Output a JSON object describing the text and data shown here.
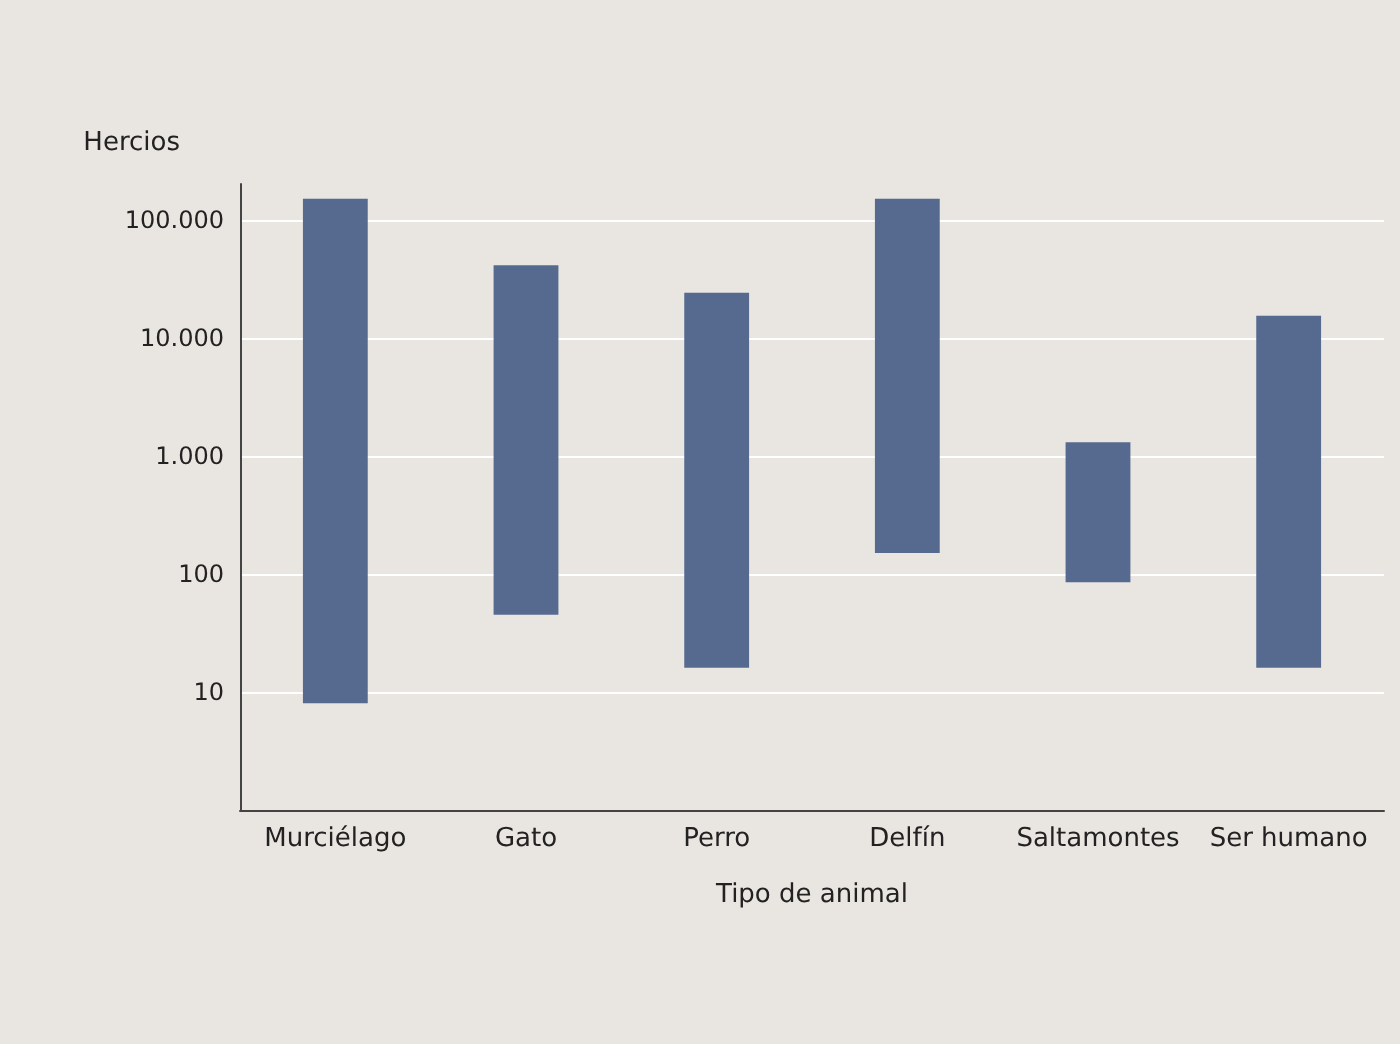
{
  "chart_data": {
    "type": "bar",
    "xlabel": "Tipo de animal",
    "ylabel": "Hercios",
    "categories": [
      "Murciélago",
      "Gato",
      "Perro",
      "Delfín",
      "Saltamontes",
      "Ser humano"
    ],
    "base": [
      8,
      45,
      16,
      150,
      85,
      16
    ],
    "values": [
      149992,
      40955,
      23984,
      149850,
      1215,
      15284
    ],
    "color": "#566a8f",
    "log": true,
    "ylim": [
      1,
      200000
    ],
    "yticks": [
      {
        "value": 10,
        "label": "10"
      },
      {
        "value": 100,
        "label": "100"
      },
      {
        "value": 1000,
        "label": "1.000"
      },
      {
        "value": 10000,
        "label": "10.000"
      },
      {
        "value": 100000,
        "label": "100.000"
      }
    ],
    "grid": "y"
  }
}
